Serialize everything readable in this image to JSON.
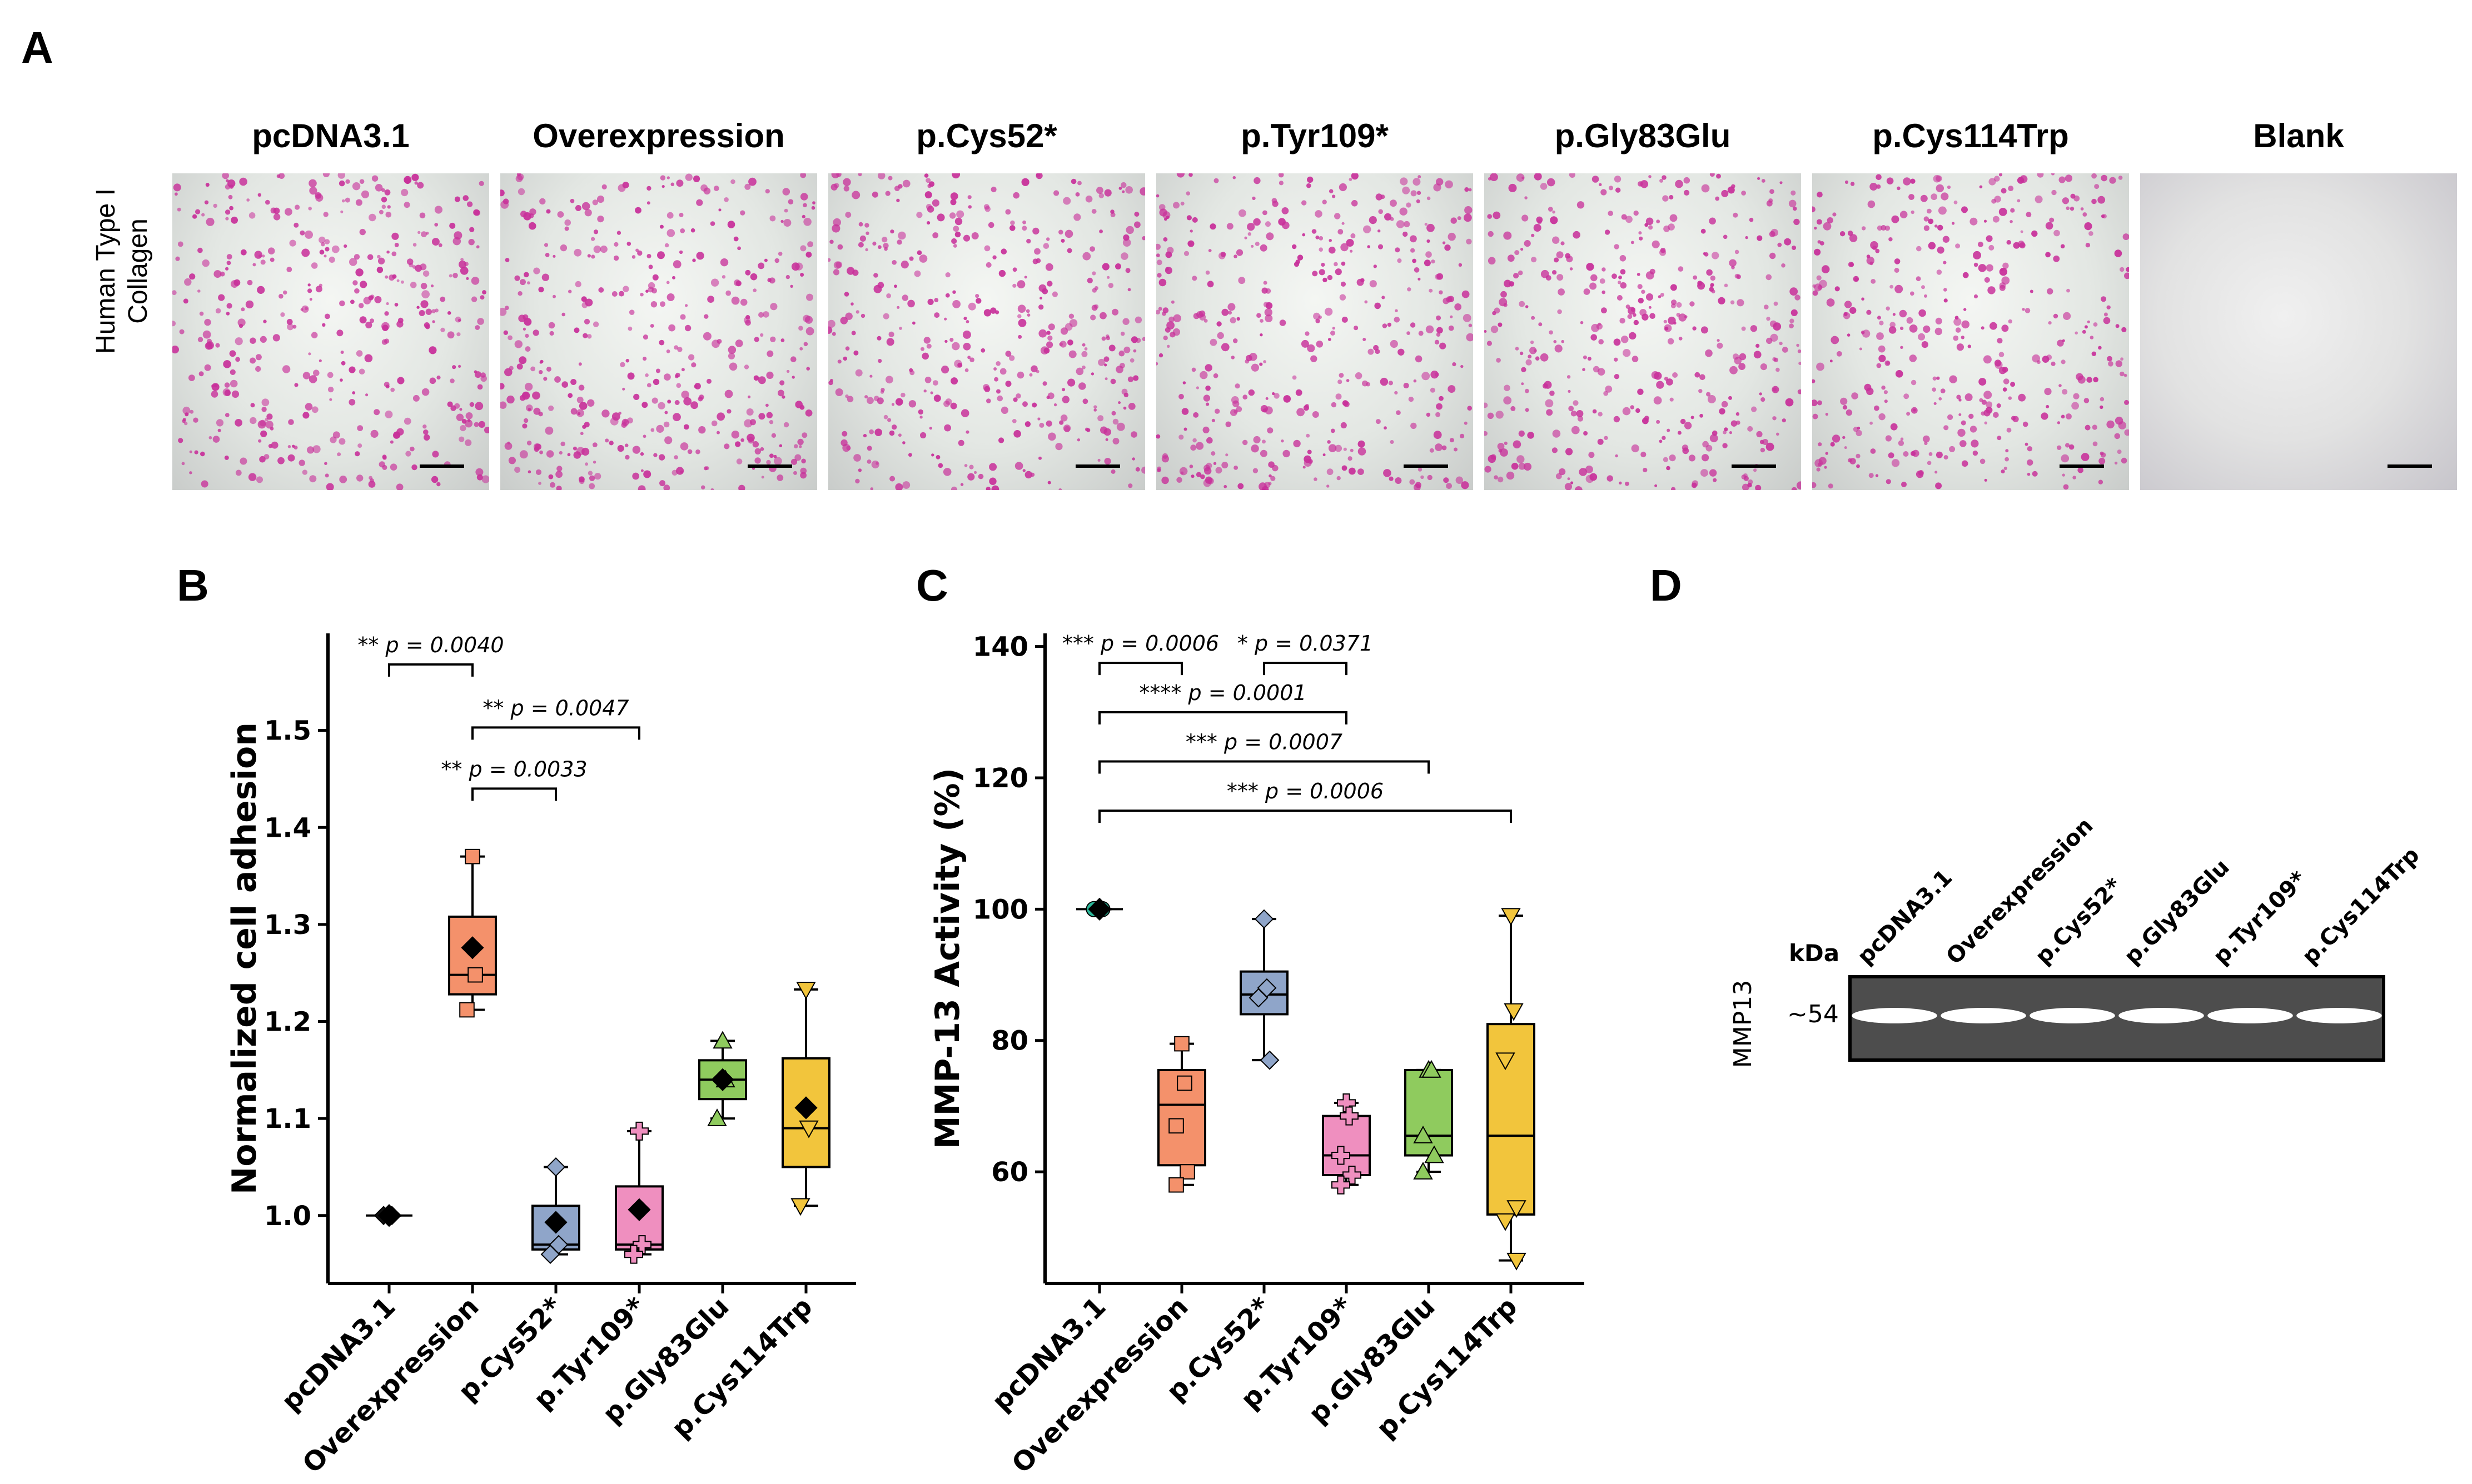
{
  "panel_labels": {
    "a": "A",
    "b": "B",
    "c": "C",
    "d": "D"
  },
  "panel_a": {
    "row_label_line1": "Human Type I",
    "row_label_line2": "Collagen",
    "titles": [
      "pcDNA3.1",
      "Overexpression",
      "p.Cys52*",
      "p.Tyr109*",
      "p.Gly83Glu",
      "p.Cys114Trp",
      "Blank"
    ],
    "stain_color": "#c8309a"
  },
  "panel_d": {
    "kda_label": "kDa",
    "row_label": "MMP13",
    "band_label": "~54",
    "lanes": [
      "pcDNA3.1",
      "Overexpression",
      "p.Cys52*",
      "p.Gly83Glu",
      "p.Tyr109*",
      "p.Cys114Trp"
    ]
  },
  "chart_data": [
    {
      "type": "box",
      "ylabel": "Normalized cell adhesion",
      "ylim": [
        0.93,
        1.6
      ],
      "yticks": [
        1.0,
        1.1,
        1.2,
        1.3,
        1.4,
        1.5
      ],
      "tick_labels": [
        "1.0",
        "1.1",
        "1.2",
        "1.3",
        "1.4",
        "1.5"
      ],
      "categories": [
        "pcDNA3.1",
        "Overexpression",
        "p.Cys52*",
        "p.Tyr109*",
        "p.Gly83Glu",
        "p.Cys114Trp"
      ],
      "colors": [
        "#111111",
        "#f4916b",
        "#8fa5c9",
        "#ef8fbf",
        "#8fcb5e",
        "#f2c53c"
      ],
      "markers": [
        "diamond",
        "square",
        "diamond",
        "plus",
        "triangle-up",
        "triangle-down"
      ],
      "boxes": [
        {
          "q1": 1.0,
          "median": 1.0,
          "q3": 1.0,
          "whislo": 1.0,
          "whishi": 1.0,
          "mean": 1.0,
          "points": [
            1.0,
            1.0,
            1.0
          ]
        },
        {
          "q1": 1.228,
          "median": 1.248,
          "q3": 1.308,
          "whislo": 1.212,
          "whishi": 1.37,
          "mean": 1.276,
          "points": [
            1.37,
            1.248,
            1.212
          ]
        },
        {
          "q1": 0.965,
          "median": 0.97,
          "q3": 1.01,
          "whislo": 0.96,
          "whishi": 1.05,
          "mean": 0.993,
          "points": [
            1.05,
            0.97,
            0.96
          ]
        },
        {
          "q1": 0.965,
          "median": 0.97,
          "q3": 1.03,
          "whislo": 0.96,
          "whishi": 1.087,
          "mean": 1.006,
          "points": [
            1.087,
            0.97,
            0.96
          ]
        },
        {
          "q1": 1.12,
          "median": 1.14,
          "q3": 1.16,
          "whislo": 1.1,
          "whishi": 1.18,
          "mean": 1.14,
          "points": [
            1.18,
            1.14,
            1.1
          ]
        },
        {
          "q1": 1.05,
          "median": 1.09,
          "q3": 1.162,
          "whislo": 1.01,
          "whishi": 1.233,
          "mean": 1.111,
          "points": [
            1.233,
            1.09,
            1.01
          ]
        }
      ],
      "annotations": [
        {
          "stars": "**",
          "p": "p = 0.0040",
          "from": 0,
          "to": 1,
          "y": 1.568
        },
        {
          "stars": "**",
          "p": "p = 0.0047",
          "from": 1,
          "to": 3,
          "y": 1.503
        },
        {
          "stars": "**",
          "p": "p = 0.0033",
          "from": 1,
          "to": 2,
          "y": 1.44
        }
      ]
    },
    {
      "type": "box",
      "ylabel": "MMP-13 Activity (%)",
      "ylim": [
        43,
        142
      ],
      "yticks": [
        60,
        80,
        100,
        120,
        140
      ],
      "tick_labels": [
        "60",
        "80",
        "100",
        "120",
        "140"
      ],
      "categories": [
        "pcDNA3.1",
        "Overexpression",
        "p.Cys52*",
        "p.Tyr109*",
        "p.Gly83Glu",
        "p.Cys114Trp"
      ],
      "colors": [
        "#2bb89a",
        "#f4916b",
        "#8fa5c9",
        "#ef8fbf",
        "#8fcb5e",
        "#f2c53c"
      ],
      "markers": [
        "circle",
        "square",
        "diamond",
        "plus",
        "triangle-up",
        "triangle-down"
      ],
      "boxes": [
        {
          "q1": 100,
          "median": 100,
          "q3": 100,
          "whislo": 100,
          "whishi": 100,
          "mean": 100,
          "points": [
            100,
            100,
            100
          ]
        },
        {
          "q1": 61,
          "median": 70.2,
          "q3": 75.5,
          "whislo": 58,
          "whishi": 79.5,
          "mean": null,
          "points": [
            79.5,
            73.5,
            67,
            60,
            58
          ]
        },
        {
          "q1": 84,
          "median": 87,
          "q3": 90.5,
          "whislo": 77,
          "whishi": 98.5,
          "mean": null,
          "points": [
            98.5,
            88,
            86.5,
            77
          ]
        },
        {
          "q1": 59.5,
          "median": 62.5,
          "q3": 68.5,
          "whislo": 58,
          "whishi": 70.5,
          "mean": null,
          "points": [
            70.5,
            68.5,
            62.5,
            59.5,
            58
          ]
        },
        {
          "q1": 62.5,
          "median": 65.5,
          "q3": 75.5,
          "whislo": 60,
          "whishi": 75.5,
          "mean": null,
          "points": [
            75.5,
            75.5,
            65.5,
            62.5,
            60
          ]
        },
        {
          "q1": 53.5,
          "median": 65.5,
          "q3": 82.5,
          "whislo": 46.5,
          "whishi": 99,
          "mean": null,
          "points": [
            99,
            84.5,
            77,
            54.5,
            52.5,
            46.5
          ]
        }
      ],
      "annotations": [
        {
          "stars": "***",
          "p": "p = 0.0006",
          "from": 0,
          "to": 1,
          "y": 137.5
        },
        {
          "stars": "*",
          "p": "p = 0.0371",
          "from": 2,
          "to": 3,
          "y": 137.5
        },
        {
          "stars": "****",
          "p": "p = 0.0001",
          "from": 0,
          "to": 3,
          "y": 130
        },
        {
          "stars": "***",
          "p": "p = 0.0007",
          "from": 0,
          "to": 4,
          "y": 122.5
        },
        {
          "stars": "***",
          "p": "p = 0.0006",
          "from": 0,
          "to": 5,
          "y": 115
        }
      ]
    }
  ]
}
